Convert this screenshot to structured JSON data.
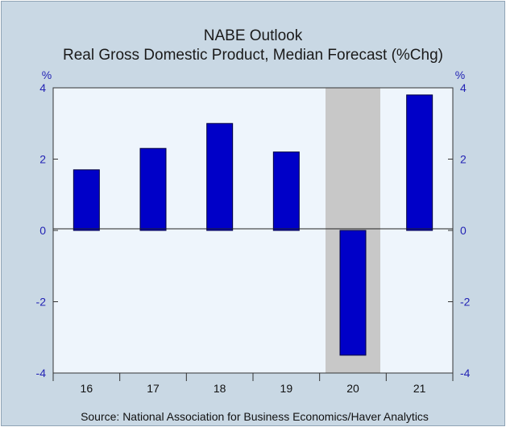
{
  "chart_data": {
    "type": "bar",
    "title": "NABE Outlook",
    "subtitle": "Real Gross Domestic Product, Median Forecast (%Chg)",
    "ylabel_left": "%",
    "ylabel_right": "%",
    "categories": [
      "16",
      "17",
      "18",
      "19",
      "20",
      "21"
    ],
    "values": [
      1.7,
      2.3,
      3.0,
      2.2,
      -3.5,
      3.8
    ],
    "ylim": [
      -4,
      4
    ],
    "yticks": [
      4,
      2,
      0,
      -2,
      -4
    ],
    "shaded_category": "20",
    "source": "Source:  National Association for Business Economics/Haver Analytics",
    "grid": false,
    "colors": {
      "bar": "#0000c8",
      "plot_bg": "#eef5fc",
      "frame_bg": "#c9d8e4",
      "shade": "#c8c8c8",
      "tick_label": "#2323b4"
    }
  }
}
